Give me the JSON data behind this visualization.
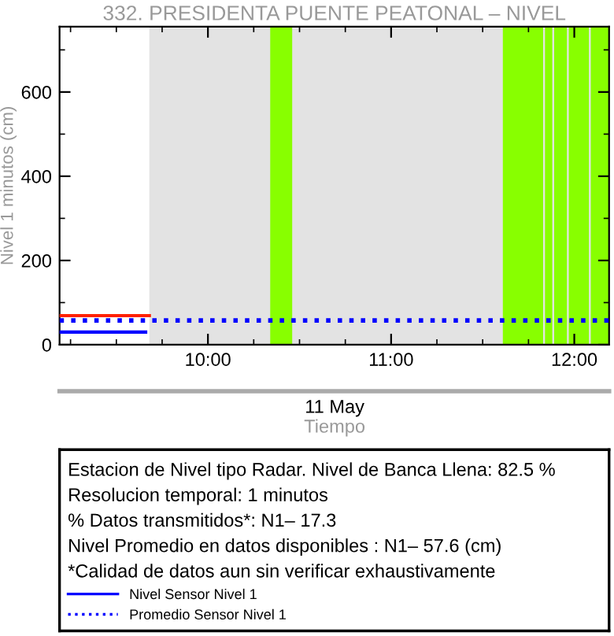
{
  "chart_data": {
    "type": "line",
    "title": "332. PRESIDENTA PUENTE PEATONAL – NIVEL",
    "xlabel": "Tiempo",
    "ylabel": "Nivel 1 minutos (cm)",
    "xlim": [
      9.19,
      12.19
    ],
    "xticks": [
      {
        "value": 10,
        "label": "10:00"
      },
      {
        "value": 11,
        "label": "11:00"
      },
      {
        "value": 12,
        "label": "12:00"
      }
    ],
    "ylim": [
      0,
      755
    ],
    "yticks": [
      0,
      200,
      400,
      600
    ],
    "series": [
      {
        "color": "#ff2000",
        "x": [
          9.19,
          9.68
        ],
        "values": [
          69,
          69
        ],
        "line_style": "solid"
      },
      {
        "name": "Nivel Sensor Nivel 1",
        "color": "#0000ff",
        "x": [
          9.19,
          9.66
        ],
        "values": [
          30,
          30
        ],
        "line_style": "solid"
      },
      {
        "name": "Promedio Sensor Nivel 1",
        "color": "#0000ff",
        "x": [
          9.19,
          12.19
        ],
        "values": [
          57.6,
          57.6
        ],
        "line_style": "dotted"
      }
    ],
    "bands": [
      {
        "axis": "x",
        "from": 9.68,
        "to": 12.19,
        "color": "#e3e3e3"
      },
      {
        "axis": "x",
        "from": 10.34,
        "to": 10.46,
        "color": "#88ff00"
      },
      {
        "axis": "x",
        "from": 11.61,
        "to": 11.83,
        "color": "#88ff00"
      },
      {
        "axis": "x",
        "from": 11.84,
        "to": 11.88,
        "color": "#88ff00"
      },
      {
        "axis": "x",
        "from": 11.89,
        "to": 11.96,
        "color": "#88ff00"
      },
      {
        "axis": "x",
        "from": 11.97,
        "to": 12.08,
        "color": "#88ff00"
      },
      {
        "axis": "x",
        "from": 12.09,
        "to": 12.19,
        "color": "#88ff00"
      }
    ],
    "annotations": [
      "11 May",
      "Estacion de Nivel tipo Radar. Nivel de Banca Llena: 82.5 %",
      "Resolucion temporal: 1 minutos",
      "% Datos transmitidos*: N1– 17.3",
      "Nivel Promedio en datos disponibles : N1– 57.6 (cm)",
      "*Calidad de datos aun sin verificar exhaustivamente"
    ],
    "legend": "bottom",
    "grid": false,
    "marker": "none"
  }
}
